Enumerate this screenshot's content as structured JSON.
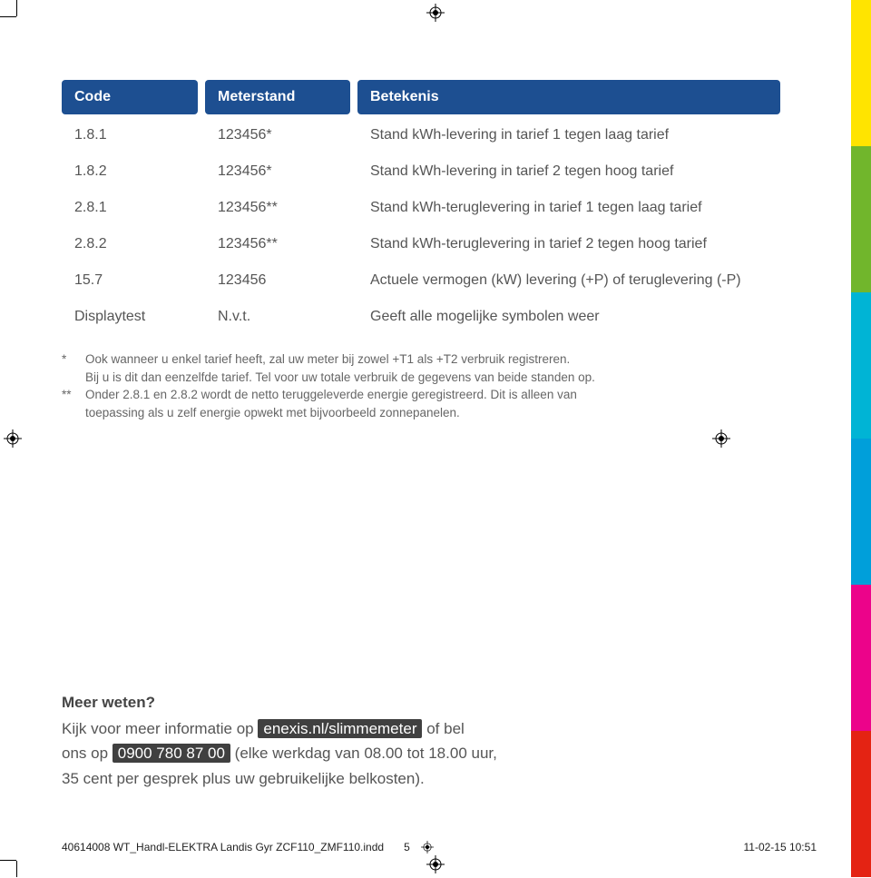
{
  "colors": {
    "header_bg": "#1d4f91",
    "header_text": "#ffffff",
    "body_text": "#555555",
    "footnote_text": "#666666",
    "pill_bg": "#404040",
    "pill_text": "#ffffff",
    "bar_colors": [
      "#ffe400",
      "#71b62c",
      "#00b4d5",
      "#009fda",
      "#ec038a",
      "#e42313"
    ]
  },
  "table": {
    "headers": [
      "Code",
      "Meterstand",
      "Betekenis"
    ],
    "rows": [
      [
        "1.8.1",
        "123456*",
        "Stand kWh-levering in tarief 1 tegen laag tarief"
      ],
      [
        "1.8.2",
        "123456*",
        "Stand kWh-levering in tarief 2 tegen hoog tarief"
      ],
      [
        "2.8.1",
        "123456**",
        "Stand kWh-teruglevering in tarief 1 tegen laag tarief"
      ],
      [
        "2.8.2",
        "123456**",
        "Stand kWh-teruglevering in tarief 2 tegen hoog tarief"
      ],
      [
        "15.7",
        "123456",
        "Actuele vermogen (kW) levering (+P) of teruglevering (-P)"
      ],
      [
        "Displaytest",
        "N.v.t.",
        "Geeft alle mogelijke symbolen weer"
      ]
    ]
  },
  "footnotes": {
    "fn1_marker": "*",
    "fn1_line1": "Ook wanneer u enkel tarief heeft, zal uw meter bij zowel +T1 als +T2 verbruik registreren.",
    "fn1_line2": "Bij u is dit dan eenzelfde tarief. Tel voor uw totale verbruik de gegevens van beide standen op.",
    "fn2_marker": "**",
    "fn2_line1": "Onder 2.8.1 en 2.8.2 wordt de netto teruggeleverde energie geregistreerd. Dit is alleen van",
    "fn2_line2": "toepassing als u zelf energie opwekt met bijvoorbeeld zonnepanelen."
  },
  "more": {
    "title": "Meer weten?",
    "line1_before": "Kijk voor meer informatie op ",
    "line1_pill": "enexis.nl/slimmemeter",
    "line1_after": " of bel",
    "line2_before": "ons op ",
    "line2_pill": "0900 780 87 00",
    "line2_after": " (elke werkdag van 08.00 tot 18.00 uur,",
    "line3": "35 cent per gesprek plus uw gebruikelijke belkosten)."
  },
  "footer": {
    "file": "40614008 WT_Handl-ELEKTRA Landis Gyr ZCF110_ZMF110.indd",
    "page": "5",
    "datetime": "11-02-15   10:51"
  }
}
